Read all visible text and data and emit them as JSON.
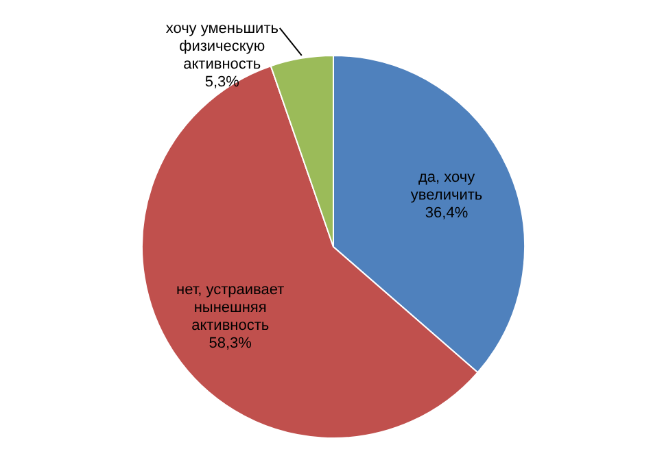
{
  "chart_data": {
    "type": "pie",
    "categories": [
      "да, хочу увеличить",
      "нет, устраивает нынешняя активность",
      "хочу уменьшить физическую активность"
    ],
    "values": [
      36.4,
      58.3,
      5.3
    ],
    "colors": [
      "#4f81bd",
      "#c0504d",
      "#9bbb59"
    ],
    "value_labels": [
      "36,4%",
      "58,3%",
      "5,3%"
    ],
    "legend": false
  }
}
